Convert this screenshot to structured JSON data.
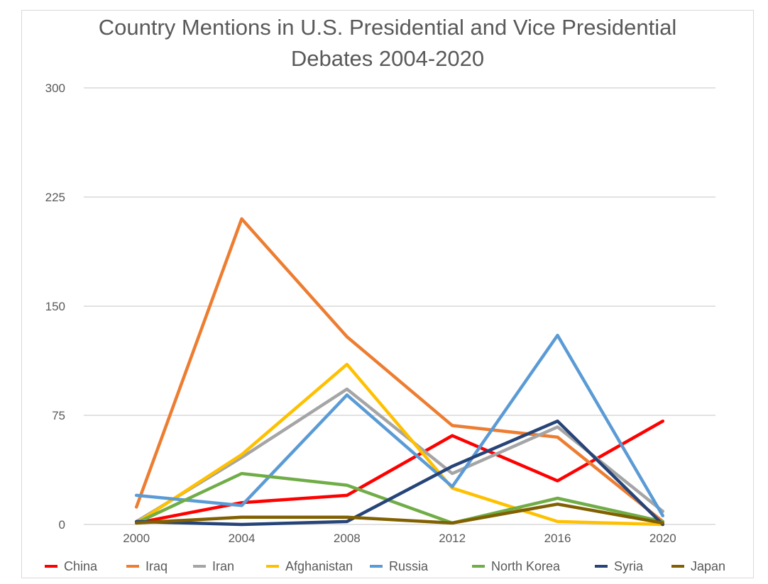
{
  "chart_data": {
    "type": "line",
    "title_lines": [
      "Country Mentions in U.S. Presidential and Vice Presidential",
      "Debates 2004-2020"
    ],
    "x": [
      "2000",
      "2004",
      "2008",
      "2012",
      "2016",
      "2020"
    ],
    "y_ticks": [
      "0",
      "75",
      "150",
      "225",
      "300"
    ],
    "ylim": [
      0,
      300
    ],
    "grid": true,
    "legend_position": "bottom",
    "series": [
      {
        "name": "China",
        "color": "#ff0000",
        "values": [
          1,
          15,
          20,
          61,
          30,
          71
        ]
      },
      {
        "name": "Iraq",
        "color": "#ed7d31",
        "values": [
          12,
          210,
          129,
          68,
          60,
          2
        ]
      },
      {
        "name": "Iran",
        "color": "#a5a5a5",
        "values": [
          2,
          46,
          93,
          35,
          67,
          9
        ]
      },
      {
        "name": "Afghanistan",
        "color": "#ffc000",
        "values": [
          1,
          48,
          110,
          25,
          2,
          0
        ]
      },
      {
        "name": "Russia",
        "color": "#5b9bd5",
        "values": [
          20,
          13,
          89,
          26,
          130,
          6
        ]
      },
      {
        "name": "North Korea",
        "color": "#70ad47",
        "values": [
          1,
          35,
          27,
          1,
          18,
          2
        ]
      },
      {
        "name": "Syria",
        "color": "#264478",
        "values": [
          2,
          0,
          2,
          40,
          71,
          0
        ]
      },
      {
        "name": "Japan",
        "color": "#806000",
        "values": [
          1,
          5,
          5,
          1,
          14,
          1
        ]
      }
    ]
  }
}
